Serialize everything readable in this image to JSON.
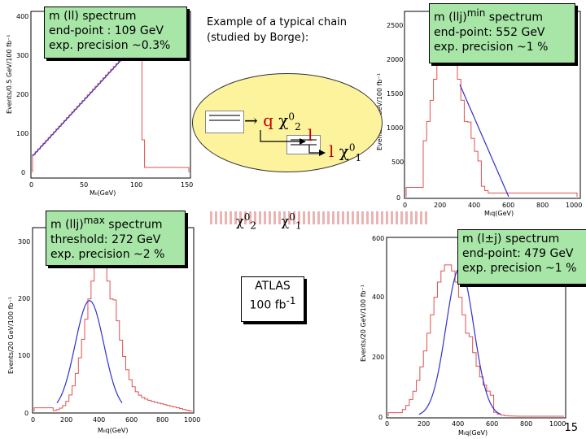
{
  "boxes": {
    "ll": {
      "l1": "m (ll) spectrum",
      "l2": "end-point : 109 GeV",
      "l3": "exp. precision ~0.3%"
    },
    "llj_min": {
      "title": "m (llj)",
      "sup": "min",
      "rest": " spectrum",
      "l2": "end-point: 552 GeV",
      "l3": "exp. precision  ~1 %"
    },
    "llj_max": {
      "title": "m (llj)",
      "sup": "max",
      "rest": " spectrum",
      "l2": "threshold: 272 GeV",
      "l3": "exp. precision  ~2 %"
    },
    "lj": {
      "l1": "m (l±j) spectrum",
      "l2": "end-point: 479 GeV",
      "l3": "exp. precision  ~1 %"
    }
  },
  "center": {
    "title_l1": "Example of a typical chain",
    "title_l2": "(studied by Borge):",
    "q": "q",
    "chi2": "χ",
    "chi2_sup": "0",
    "chi2_sub": "2",
    "l1": "l",
    "l2": "l",
    "chi1": "χ",
    "chi1_sup": "0",
    "chi1_sub": "1",
    "row2_chi2": "χ",
    "row2_chi2_sup": "0",
    "row2_chi2_sub": "2",
    "row2_chi1": "χ",
    "row2_chi1_sup": "0",
    "row2_chi1_sub": "1"
  },
  "atlas": {
    "l1": "ATLAS",
    "l2": "100 fb",
    "l2_sup": "-1"
  },
  "page_number": "15",
  "plots": {
    "tl": {
      "ylabel": "Events/0.5 GeV/100 fb⁻¹",
      "xlabel": "Mₗₗ(GeV)",
      "yticks": [
        "0",
        "100",
        "200",
        "300",
        "400"
      ],
      "xticks": [
        "0",
        "50",
        "100",
        "150"
      ]
    },
    "tr": {
      "ylabel": "Events/20 GeV/100 fb⁻¹",
      "xlabel": "Mₗq(GeV)",
      "yticks": [
        "0",
        "500",
        "1000",
        "1500",
        "2000",
        "2500"
      ],
      "xticks": [
        "0",
        "200",
        "400",
        "600",
        "800",
        "1000"
      ]
    },
    "bl": {
      "ylabel": "Events/20 GeV/100 fb⁻¹",
      "xlabel": "Mₗₗq(GeV)",
      "yticks": [
        "0",
        "100",
        "200",
        "300"
      ],
      "xticks": [
        "0",
        "200",
        "400",
        "600",
        "800",
        "1000"
      ]
    },
    "br": {
      "ylabel": "Events/20 GeV/100 fb⁻¹",
      "xlabel": "Mₗq(GeV)",
      "yticks": [
        "0",
        "200",
        "400",
        "600"
      ],
      "xticks": [
        "0",
        "200",
        "400",
        "600",
        "800",
        "1000"
      ]
    }
  },
  "colors": {
    "green_box": "#a8e6a8",
    "histogram": "#e05050",
    "fit": "#3030d0",
    "ellipse": "#fdf39c"
  }
}
